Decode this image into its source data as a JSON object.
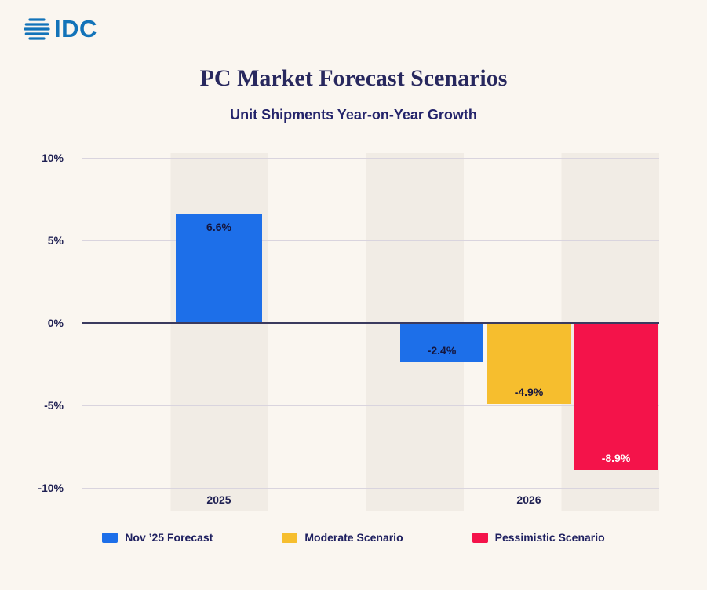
{
  "brand": {
    "name": "IDC"
  },
  "header": {
    "title": "PC Market Forecast Scenarios",
    "subtitle": "Unit Shipments Year-on-Year Growth"
  },
  "chart_data": {
    "type": "bar",
    "title": "PC Market Forecast Scenarios",
    "subtitle": "Unit Shipments Year-on-Year Growth",
    "ylabel": "Unit Shipments Year-on-Year Growth (%)",
    "ylim": [
      -10,
      10
    ],
    "grid": true,
    "legend_position": "bottom",
    "yticks": [
      {
        "value": 10,
        "label": "10%"
      },
      {
        "value": 5,
        "label": "5%"
      },
      {
        "value": 0,
        "label": "0%"
      },
      {
        "value": -5,
        "label": "-5%"
      },
      {
        "value": -10,
        "label": "-10%"
      }
    ],
    "categories": [
      "2025",
      "2026"
    ],
    "series": [
      {
        "name": "Nov ’25 Forecast",
        "color": "#1D6FE9",
        "values": [
          6.6,
          -2.4
        ]
      },
      {
        "name": "Moderate Scenario",
        "color": "#F6BE2E",
        "values": [
          null,
          -4.9
        ]
      },
      {
        "name": "Pessimistic Scenario",
        "color": "#F4134A",
        "values": [
          null,
          -8.9
        ]
      }
    ],
    "bars": [
      {
        "series": "Nov ’25 Forecast",
        "category": "2025",
        "value": 6.6,
        "label": "6.6%",
        "color": "#1D6FE9",
        "label_color": "#15163E"
      },
      {
        "series": "Nov ’25 Forecast",
        "category": "2026",
        "value": -2.4,
        "label": "-2.4%",
        "color": "#1D6FE9",
        "label_color": "#15163E"
      },
      {
        "series": "Moderate Scenario",
        "category": "2026",
        "value": -4.9,
        "label": "-4.9%",
        "color": "#F6BE2E",
        "label_color": "#15163E"
      },
      {
        "series": "Pessimistic Scenario",
        "category": "2026",
        "value": -8.9,
        "label": "-8.9%",
        "color": "#F4134A",
        "label_color": "#FFFFFF"
      }
    ]
  },
  "legend": {
    "items": [
      {
        "label": "Nov ’25 Forecast",
        "color": "#1D6FE9"
      },
      {
        "label": "Moderate Scenario",
        "color": "#F6BE2E"
      },
      {
        "label": "Pessimistic Scenario",
        "color": "#F4134A"
      }
    ]
  },
  "colors": {
    "background": "#FAF6F0",
    "band": "#F1ECE5",
    "title": "#28285E",
    "axis": "#3A3A5E",
    "gridline": "#D9D4DE",
    "brand_blue": "#1273B9"
  }
}
